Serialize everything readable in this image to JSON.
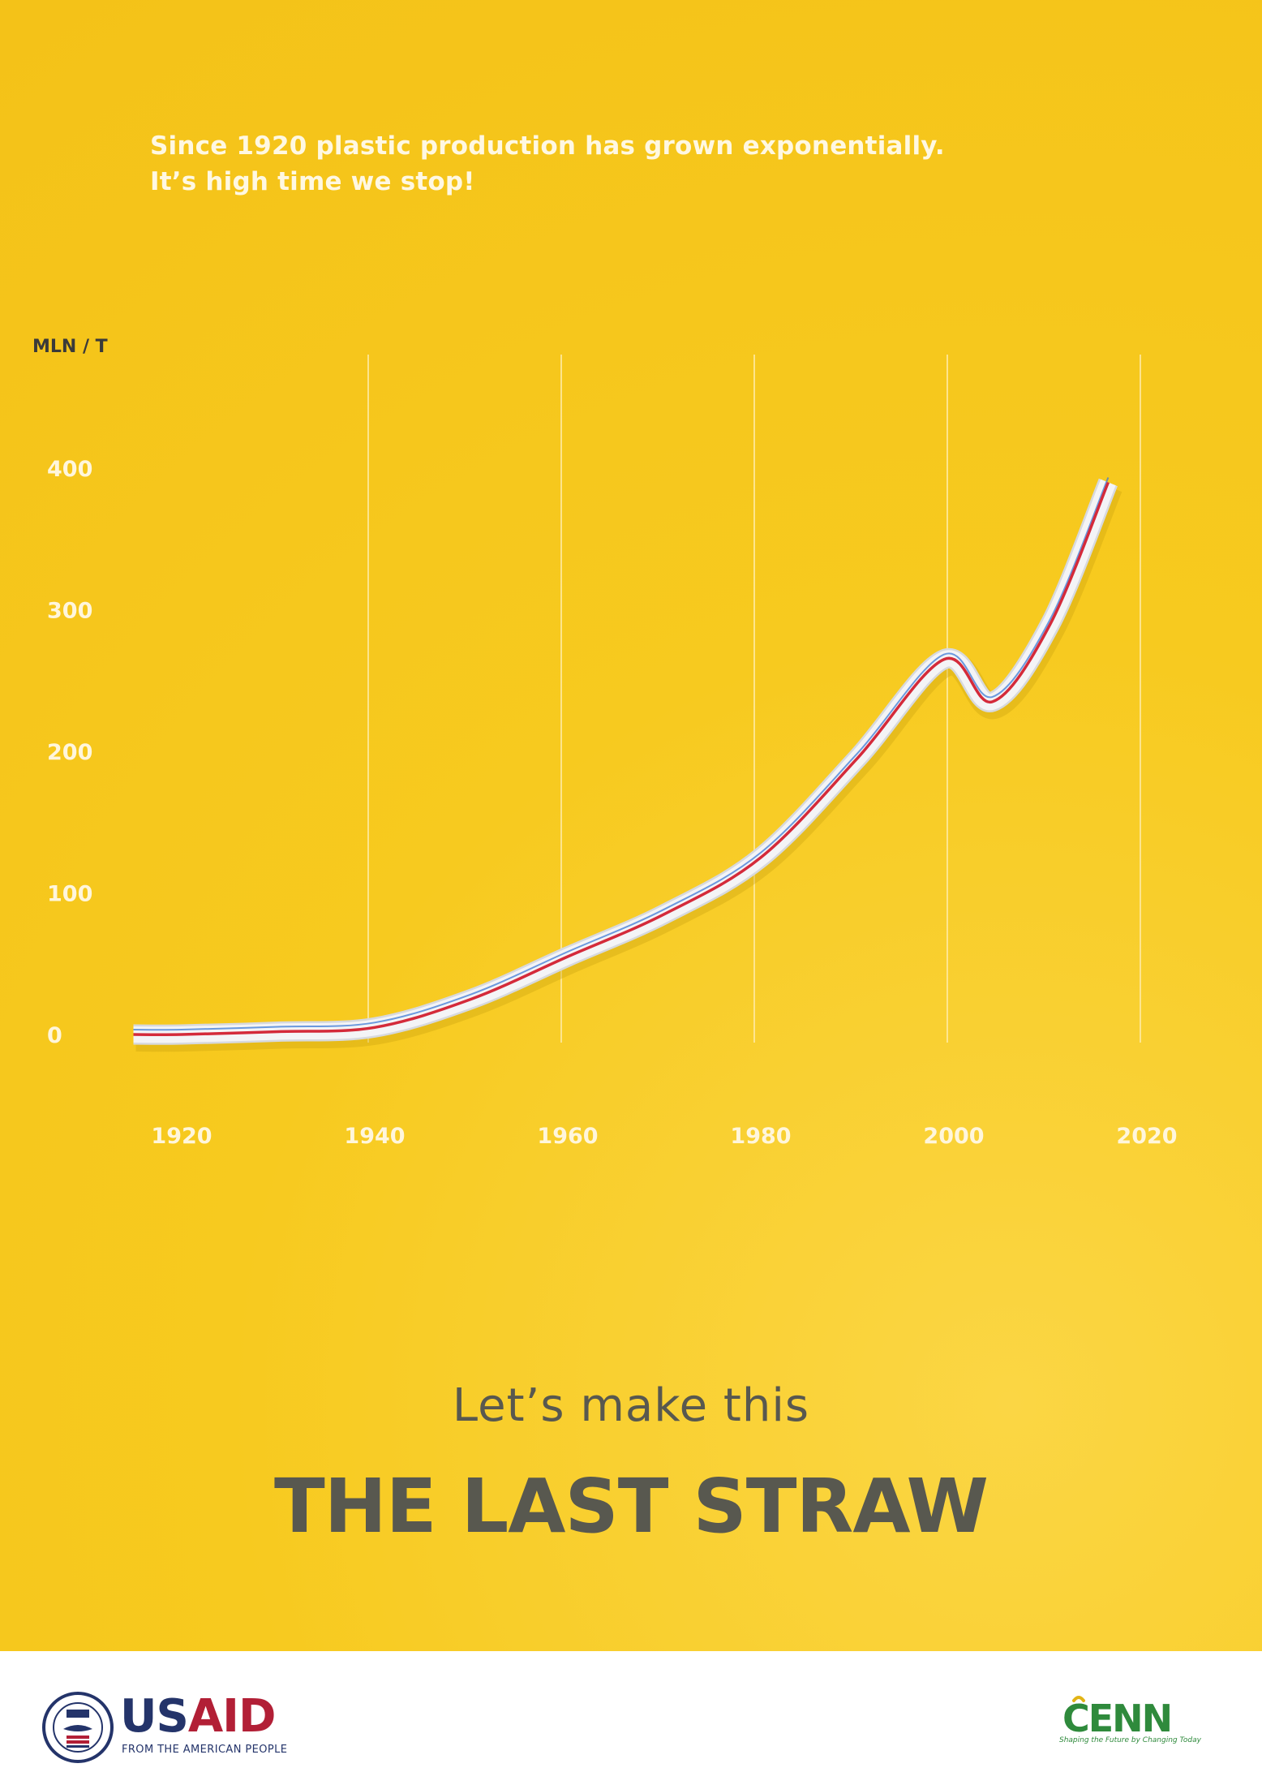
{
  "intro": {
    "line1": "Since 1920 plastic production has grown exponentially.",
    "line2": "It’s high time we stop!"
  },
  "chart_data": {
    "type": "line",
    "ylabel": "MLN / T",
    "xlabel": "",
    "x": [
      1915,
      1920,
      1930,
      1940,
      1950,
      1960,
      1970,
      1980,
      1990,
      1999,
      2004,
      2010,
      2016
    ],
    "series": [
      {
        "values": [
          0,
          0,
          2,
          5,
          25,
          55,
          85,
          125,
          195,
          265,
          235,
          290,
          390
        ]
      }
    ],
    "xticks": [
      "1920",
      "1940",
      "1960",
      "1980",
      "2000",
      "2020"
    ],
    "yticks": [
      "0",
      "100",
      "200",
      "300",
      "400"
    ],
    "xlim": [
      1920,
      2020
    ],
    "ylim": [
      0,
      400
    ],
    "grid": "vertical",
    "colors": {
      "straw": "#f4f4f6",
      "stripe_red": "#d42a3a",
      "stripe_blue": "#3d7bd6",
      "gridline": "#ffeaa0",
      "tick_label": "#fff6dc",
      "background": "#f7ca1f"
    }
  },
  "tagline": {
    "small": "Let’s make this",
    "big": "THE LAST STRAW",
    "color": "#58584f"
  },
  "footer": {
    "usaid_us": "US",
    "usaid_aid": "AID",
    "usaid_sub": "FROM THE AMERICAN PEOPLE",
    "cenn_name": "CENN",
    "cenn_tagline": "Shaping the Future by Changing Today"
  }
}
